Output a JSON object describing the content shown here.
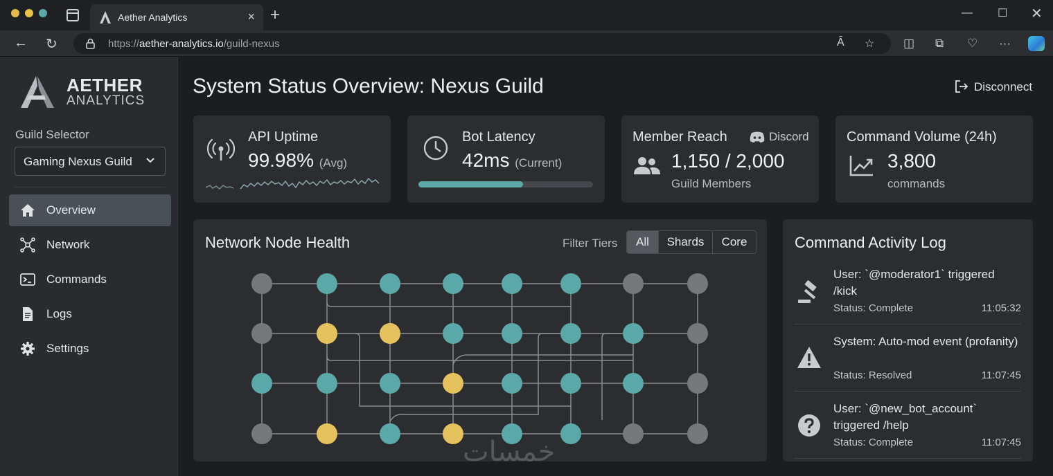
{
  "browser": {
    "tab_title": "Aether Analytics",
    "url_prefix": "https://",
    "url_host": "aether-analytics.io",
    "url_path": "/guild-nexus",
    "traffic_colors": [
      "#e7b94a",
      "#e7c14a",
      "#5ca7a7"
    ]
  },
  "sidebar": {
    "brand_line1": "AETHER",
    "brand_line2": "ANALYTICS",
    "guild_selector_label": "Guild Selector",
    "guild_selected": "Gaming Nexus Guild",
    "nav": [
      {
        "label": "Overview",
        "icon": "home-icon",
        "active": true
      },
      {
        "label": "Network",
        "icon": "network-icon"
      },
      {
        "label": "Commands",
        "icon": "terminal-icon"
      },
      {
        "label": "Logs",
        "icon": "document-icon"
      },
      {
        "label": "Settings",
        "icon": "gear-icon"
      }
    ]
  },
  "header": {
    "title": "System Status Overview: Nexus Guild",
    "disconnect_label": "Disconnect"
  },
  "stats": {
    "uptime": {
      "title": "API Uptime",
      "value": "99.98%",
      "unit": "(Avg)"
    },
    "latency": {
      "title": "Bot Latency",
      "value": "42ms",
      "unit": "(Current)",
      "bar_fraction": 0.6
    },
    "reach": {
      "title": "Member Reach",
      "badge": "Discord",
      "value": "1,150 / 2,000",
      "sub": "Guild Members"
    },
    "volume": {
      "title": "Command Volume (24h)",
      "value": "3,800",
      "sub": "commands"
    }
  },
  "network": {
    "title": "Network Node Health",
    "filter_label": "Filter Tiers",
    "filters": [
      "All",
      "Shards",
      "Core"
    ],
    "active_filter": "All",
    "status_colors": {
      "healthy": "#5ba8a8",
      "warning": "#e6c25e",
      "offline": "#76787c"
    },
    "grid": [
      [
        "offline",
        "healthy",
        "healthy",
        "healthy",
        "healthy",
        "healthy",
        "offline",
        "offline"
      ],
      [
        "offline",
        "warning",
        "warning",
        "healthy",
        "healthy",
        "healthy",
        "healthy",
        "offline"
      ],
      [
        "healthy",
        "healthy",
        "healthy",
        "warning",
        "healthy",
        "healthy",
        "healthy",
        "offline"
      ],
      [
        "offline",
        "warning",
        "healthy",
        "warning",
        "healthy",
        "healthy",
        "offline",
        "offline"
      ]
    ]
  },
  "log": {
    "title": "Command Activity Log",
    "entries": [
      {
        "icon": "gavel-icon",
        "text": "User: `@moderator1` triggered /kick",
        "status": "Status: Complete",
        "time": "11:05:32"
      },
      {
        "icon": "warning-icon",
        "text": "System: Auto-mod event (profanity)",
        "status": "Status: Resolved",
        "time": "11:07:45"
      },
      {
        "icon": "help-icon",
        "text": "User: `@new_bot_account` triggered /help",
        "status": "Status: Complete",
        "time": "11:07:45"
      }
    ]
  },
  "watermark": "خمسات"
}
